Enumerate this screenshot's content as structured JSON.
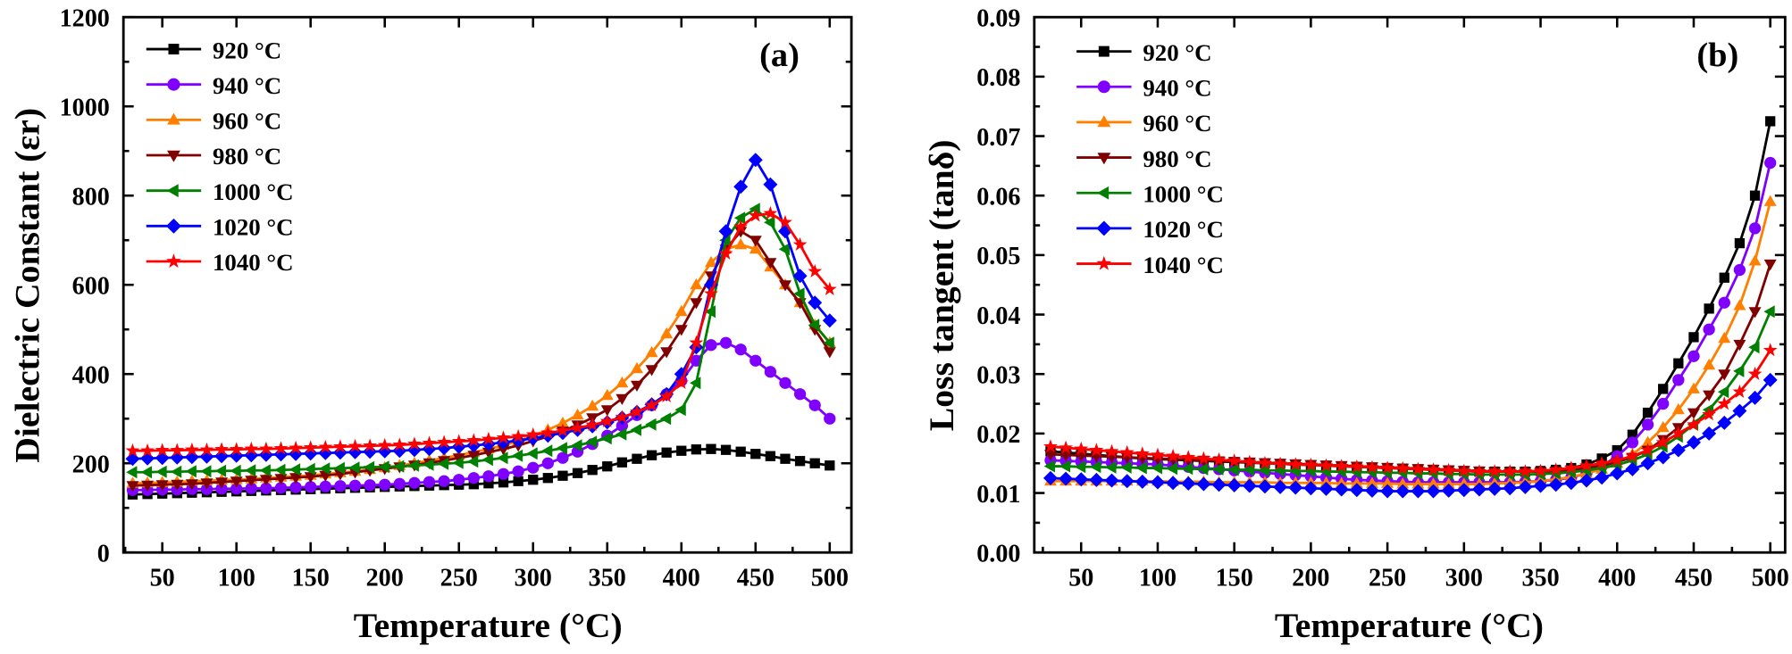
{
  "chart_data": [
    {
      "type": "line",
      "panel_label": "(a)",
      "xlabel": "Temperature (°C)",
      "ylabel": "Dielectric Constant (εr)",
      "xlim": [
        25,
        515
      ],
      "ylim": [
        0,
        1200
      ],
      "xticks": [
        50,
        100,
        150,
        200,
        250,
        300,
        350,
        400,
        450,
        500
      ],
      "yticks": [
        0,
        200,
        400,
        600,
        800,
        1000,
        1200
      ],
      "legend_position": "top-left",
      "grid": false,
      "x": [
        30,
        40,
        50,
        60,
        70,
        80,
        90,
        100,
        110,
        120,
        130,
        140,
        150,
        160,
        170,
        180,
        190,
        200,
        210,
        220,
        230,
        240,
        250,
        260,
        270,
        280,
        290,
        300,
        310,
        320,
        330,
        340,
        350,
        360,
        370,
        380,
        390,
        400,
        410,
        420,
        430,
        440,
        450,
        460,
        470,
        480,
        490,
        500
      ],
      "series": [
        {
          "name": "920 °C",
          "color": "#000000",
          "marker": "square",
          "values": [
            130,
            131,
            132,
            133,
            134,
            135,
            136,
            137,
            138,
            139,
            140,
            141,
            142,
            143,
            144,
            145,
            146,
            147,
            148,
            149,
            150,
            151,
            152,
            153,
            155,
            157,
            160,
            163,
            167,
            172,
            178,
            185,
            193,
            202,
            210,
            218,
            224,
            228,
            231,
            232,
            230,
            226,
            221,
            216,
            210,
            205,
            200,
            195
          ]
        },
        {
          "name": "940 °C",
          "color": "#7f00ff",
          "marker": "circle",
          "values": [
            140,
            140,
            141,
            141,
            142,
            142,
            143,
            143,
            144,
            144,
            145,
            146,
            147,
            148,
            149,
            150,
            151,
            152,
            154,
            156,
            158,
            160,
            163,
            167,
            171,
            176,
            182,
            190,
            200,
            212,
            226,
            243,
            262,
            284,
            308,
            330,
            355,
            385,
            430,
            465,
            470,
            455,
            430,
            405,
            380,
            355,
            330,
            300
          ]
        },
        {
          "name": "960 °C",
          "color": "#ff8000",
          "marker": "triangle-up",
          "values": [
            155,
            156,
            157,
            158,
            160,
            161,
            162,
            163,
            165,
            167,
            169,
            171,
            173,
            176,
            179,
            182,
            186,
            190,
            195,
            200,
            206,
            212,
            218,
            225,
            232,
            240,
            250,
            262,
            275,
            290,
            308,
            328,
            352,
            380,
            412,
            448,
            490,
            540,
            600,
            650,
            680,
            690,
            680,
            640,
            600,
            560,
            510,
            470
          ]
        },
        {
          "name": "980 °C",
          "color": "#800000",
          "marker": "triangle-down",
          "values": [
            150,
            151,
            152,
            153,
            154,
            156,
            158,
            160,
            162,
            164,
            166,
            168,
            170,
            173,
            176,
            180,
            184,
            188,
            192,
            196,
            201,
            206,
            212,
            218,
            225,
            232,
            240,
            250,
            260,
            272,
            286,
            302,
            320,
            345,
            375,
            410,
            450,
            500,
            560,
            620,
            680,
            720,
            700,
            650,
            600,
            560,
            500,
            450
          ]
        },
        {
          "name": "1000 °C",
          "color": "#008000",
          "marker": "triangle-left",
          "values": [
            180,
            180,
            181,
            181,
            182,
            182,
            183,
            183,
            184,
            184,
            185,
            186,
            187,
            188,
            189,
            190,
            191,
            192,
            193,
            195,
            197,
            199,
            201,
            204,
            208,
            212,
            217,
            222,
            228,
            234,
            240,
            248,
            256,
            265,
            275,
            287,
            300,
            320,
            380,
            540,
            700,
            750,
            770,
            740,
            680,
            580,
            510,
            470
          ]
        },
        {
          "name": "1020 °C",
          "color": "#0000ff",
          "marker": "diamond",
          "values": [
            210,
            211,
            212,
            213,
            214,
            215,
            216,
            217,
            218,
            219,
            220,
            221,
            222,
            223,
            224,
            225,
            226,
            227,
            228,
            230,
            232,
            234,
            237,
            240,
            243,
            247,
            251,
            256,
            262,
            268,
            275,
            283,
            292,
            302,
            315,
            332,
            355,
            400,
            460,
            600,
            720,
            820,
            880,
            825,
            720,
            620,
            560,
            520
          ]
        },
        {
          "name": "1040 °C",
          "color": "#ff0000",
          "marker": "star",
          "values": [
            228,
            228,
            229,
            229,
            230,
            230,
            231,
            231,
            232,
            232,
            233,
            234,
            235,
            236,
            237,
            238,
            239,
            240,
            241,
            243,
            245,
            247,
            249,
            251,
            254,
            257,
            260,
            264,
            268,
            273,
            279,
            286,
            294,
            303,
            315,
            330,
            350,
            380,
            470,
            580,
            670,
            730,
            755,
            760,
            740,
            690,
            630,
            590
          ]
        }
      ]
    },
    {
      "type": "line",
      "panel_label": "(b)",
      "xlabel": "Temperature (°C)",
      "ylabel": "Loss tangent (tanδ)",
      "xlim": [
        20,
        510
      ],
      "ylim": [
        0,
        0.09
      ],
      "xticks": [
        50,
        100,
        150,
        200,
        250,
        300,
        350,
        400,
        450,
        500
      ],
      "yticks": [
        "0.00",
        "0.01",
        "0.02",
        "0.03",
        "0.04",
        "0.05",
        "0.06",
        "0.07",
        "0.08",
        "0.09"
      ],
      "legend_position": "top-left",
      "grid": false,
      "x": [
        30,
        40,
        50,
        60,
        70,
        80,
        90,
        100,
        110,
        120,
        130,
        140,
        150,
        160,
        170,
        180,
        190,
        200,
        210,
        220,
        230,
        240,
        250,
        260,
        270,
        280,
        290,
        300,
        310,
        320,
        330,
        340,
        350,
        360,
        370,
        380,
        390,
        400,
        410,
        420,
        430,
        440,
        450,
        460,
        470,
        480,
        490,
        500
      ],
      "series": [
        {
          "name": "920 °C",
          "color": "#000000",
          "marker": "square",
          "values": [
            0.017,
            0.0168,
            0.0166,
            0.0164,
            0.0162,
            0.016,
            0.0158,
            0.0157,
            0.0156,
            0.0155,
            0.0154,
            0.0153,
            0.0152,
            0.0151,
            0.015,
            0.0149,
            0.0148,
            0.0147,
            0.0146,
            0.0145,
            0.0144,
            0.0143,
            0.0142,
            0.0141,
            0.014,
            0.0139,
            0.0138,
            0.0137,
            0.0136,
            0.0136,
            0.0136,
            0.0136,
            0.0137,
            0.0139,
            0.0142,
            0.0148,
            0.0158,
            0.0172,
            0.0198,
            0.0235,
            0.0275,
            0.0318,
            0.0362,
            0.041,
            0.0462,
            0.052,
            0.06,
            0.0725
          ]
        },
        {
          "name": "940 °C",
          "color": "#7f00ff",
          "marker": "circle",
          "values": [
            0.0155,
            0.0154,
            0.0153,
            0.0152,
            0.0151,
            0.015,
            0.0149,
            0.0148,
            0.0146,
            0.0144,
            0.0142,
            0.014,
            0.0138,
            0.0136,
            0.0134,
            0.0132,
            0.013,
            0.0128,
            0.0126,
            0.0124,
            0.0122,
            0.0121,
            0.012,
            0.0119,
            0.0118,
            0.0118,
            0.0118,
            0.0118,
            0.0118,
            0.0118,
            0.0118,
            0.0119,
            0.012,
            0.0122,
            0.0126,
            0.0133,
            0.0145,
            0.0162,
            0.0185,
            0.0215,
            0.025,
            0.029,
            0.033,
            0.0375,
            0.042,
            0.0475,
            0.0545,
            0.0655
          ]
        },
        {
          "name": "960 °C",
          "color": "#ff8000",
          "marker": "triangle-up",
          "values": [
            0.012,
            0.012,
            0.012,
            0.012,
            0.012,
            0.012,
            0.012,
            0.012,
            0.0119,
            0.0119,
            0.0119,
            0.0118,
            0.0118,
            0.0118,
            0.0118,
            0.0117,
            0.0117,
            0.0117,
            0.0117,
            0.0116,
            0.0116,
            0.0116,
            0.0116,
            0.0115,
            0.0115,
            0.0115,
            0.0115,
            0.0115,
            0.0115,
            0.0116,
            0.0117,
            0.0118,
            0.012,
            0.0123,
            0.0127,
            0.0133,
            0.014,
            0.015,
            0.0165,
            0.0185,
            0.021,
            0.024,
            0.0275,
            0.0315,
            0.036,
            0.0415,
            0.049,
            0.059
          ]
        },
        {
          "name": "980 °C",
          "color": "#800000",
          "marker": "triangle-down",
          "values": [
            0.0165,
            0.0164,
            0.0163,
            0.0162,
            0.0161,
            0.016,
            0.0159,
            0.0158,
            0.0157,
            0.0156,
            0.0155,
            0.0154,
            0.0153,
            0.0152,
            0.0151,
            0.015,
            0.0149,
            0.0148,
            0.0147,
            0.0146,
            0.0145,
            0.0144,
            0.0143,
            0.0142,
            0.0141,
            0.014,
            0.0139,
            0.0138,
            0.0137,
            0.0136,
            0.0136,
            0.0136,
            0.0136,
            0.0137,
            0.0139,
            0.0142,
            0.0146,
            0.0152,
            0.016,
            0.0172,
            0.019,
            0.021,
            0.0235,
            0.0265,
            0.03,
            0.035,
            0.0405,
            0.0485
          ]
        },
        {
          "name": "1000 °C",
          "color": "#008000",
          "marker": "triangle-left",
          "values": [
            0.0145,
            0.0145,
            0.0144,
            0.0144,
            0.0143,
            0.0143,
            0.0142,
            0.0142,
            0.0141,
            0.0141,
            0.014,
            0.014,
            0.0139,
            0.0139,
            0.0138,
            0.0138,
            0.0137,
            0.0137,
            0.0136,
            0.0136,
            0.0135,
            0.0135,
            0.0134,
            0.0134,
            0.0133,
            0.0133,
            0.0132,
            0.0132,
            0.0131,
            0.0131,
            0.0131,
            0.0131,
            0.0132,
            0.0133,
            0.0135,
            0.0138,
            0.0142,
            0.0147,
            0.0155,
            0.0165,
            0.0178,
            0.0195,
            0.0215,
            0.024,
            0.027,
            0.0305,
            0.0345,
            0.0405
          ]
        },
        {
          "name": "1020 °C",
          "color": "#0000ff",
          "marker": "diamond",
          "values": [
            0.0125,
            0.0124,
            0.0123,
            0.0122,
            0.0121,
            0.012,
            0.0119,
            0.0118,
            0.0117,
            0.0116,
            0.0115,
            0.0114,
            0.0113,
            0.0112,
            0.0111,
            0.011,
            0.0109,
            0.0108,
            0.0107,
            0.0106,
            0.0105,
            0.0104,
            0.0103,
            0.0103,
            0.0103,
            0.0103,
            0.0104,
            0.0105,
            0.0106,
            0.0107,
            0.0108,
            0.011,
            0.0112,
            0.0114,
            0.0117,
            0.0121,
            0.0126,
            0.0133,
            0.014,
            0.015,
            0.016,
            0.0172,
            0.0185,
            0.02,
            0.0218,
            0.0238,
            0.026,
            0.029
          ]
        },
        {
          "name": "1040 °C",
          "color": "#ff0000",
          "marker": "star",
          "values": [
            0.0178,
            0.0176,
            0.0174,
            0.0172,
            0.017,
            0.0168,
            0.0166,
            0.0164,
            0.0162,
            0.016,
            0.0158,
            0.0156,
            0.0154,
            0.0152,
            0.015,
            0.0149,
            0.0148,
            0.0147,
            0.0146,
            0.0145,
            0.0144,
            0.0143,
            0.0142,
            0.0141,
            0.014,
            0.0139,
            0.0138,
            0.0137,
            0.0136,
            0.0136,
            0.0136,
            0.0136,
            0.0137,
            0.0139,
            0.0142,
            0.0146,
            0.015,
            0.0155,
            0.0162,
            0.0172,
            0.0185,
            0.02,
            0.0215,
            0.0232,
            0.025,
            0.027,
            0.03,
            0.034
          ]
        }
      ]
    }
  ]
}
